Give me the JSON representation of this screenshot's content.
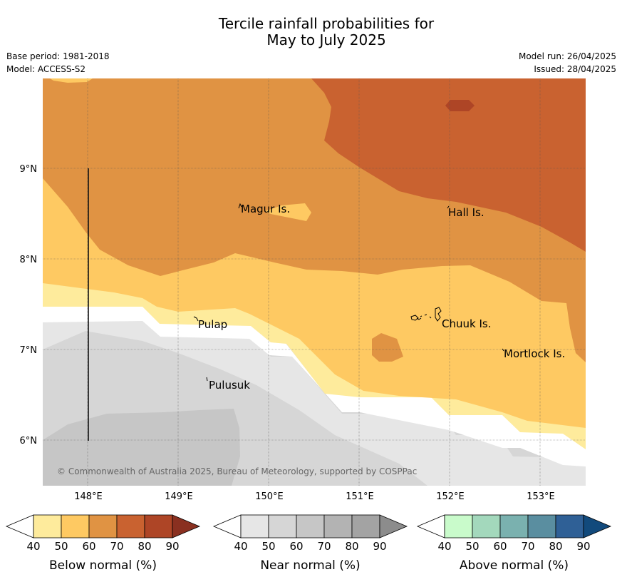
{
  "title_line1": "Tercile rainfall probabilities for",
  "title_line2": "May to July 2025",
  "meta": {
    "base_period": "Base period: 1981-2018",
    "model": "Model: ACCESS-S2",
    "model_run": "Model run: 26/04/2025",
    "issued": "Issued: 28/04/2025"
  },
  "map": {
    "lon_ticks": [
      "148°E",
      "149°E",
      "150°E",
      "151°E",
      "152°E",
      "153°E"
    ],
    "lat_ticks": [
      "9°N",
      "8°N",
      "7°N",
      "6°N"
    ],
    "islands": [
      "Magur Is.",
      "Hall Is.",
      "Pulap",
      "Chuuk Is.",
      "Mortlock Is.",
      "Pulusuk"
    ],
    "copyright": "© Commonwealth of Australia 2025, Bureau of Meteorology, supported by COSPPac"
  },
  "colorbars": [
    {
      "label": "Below normal (%)",
      "ticks": [
        "40",
        "50",
        "60",
        "70",
        "80",
        "90"
      ],
      "colors": [
        "#ffffff",
        "#feeb9c",
        "#fec962",
        "#e09343",
        "#c96230",
        "#ae4526",
        "#8a3020"
      ]
    },
    {
      "label": "Near normal (%)",
      "ticks": [
        "40",
        "50",
        "60",
        "70",
        "80",
        "90"
      ],
      "colors": [
        "#ffffff",
        "#e6e6e6",
        "#d6d6d6",
        "#c6c6c6",
        "#b3b3b3",
        "#a3a3a3",
        "#8c8c8c"
      ]
    },
    {
      "label": "Above normal (%)",
      "ticks": [
        "40",
        "50",
        "60",
        "70",
        "80",
        "90"
      ],
      "colors": [
        "#ffffff",
        "#c9fbcb",
        "#a3d8bc",
        "#7ab1af",
        "#5a8ea0",
        "#2f6096",
        "#124a7c"
      ]
    }
  ]
}
